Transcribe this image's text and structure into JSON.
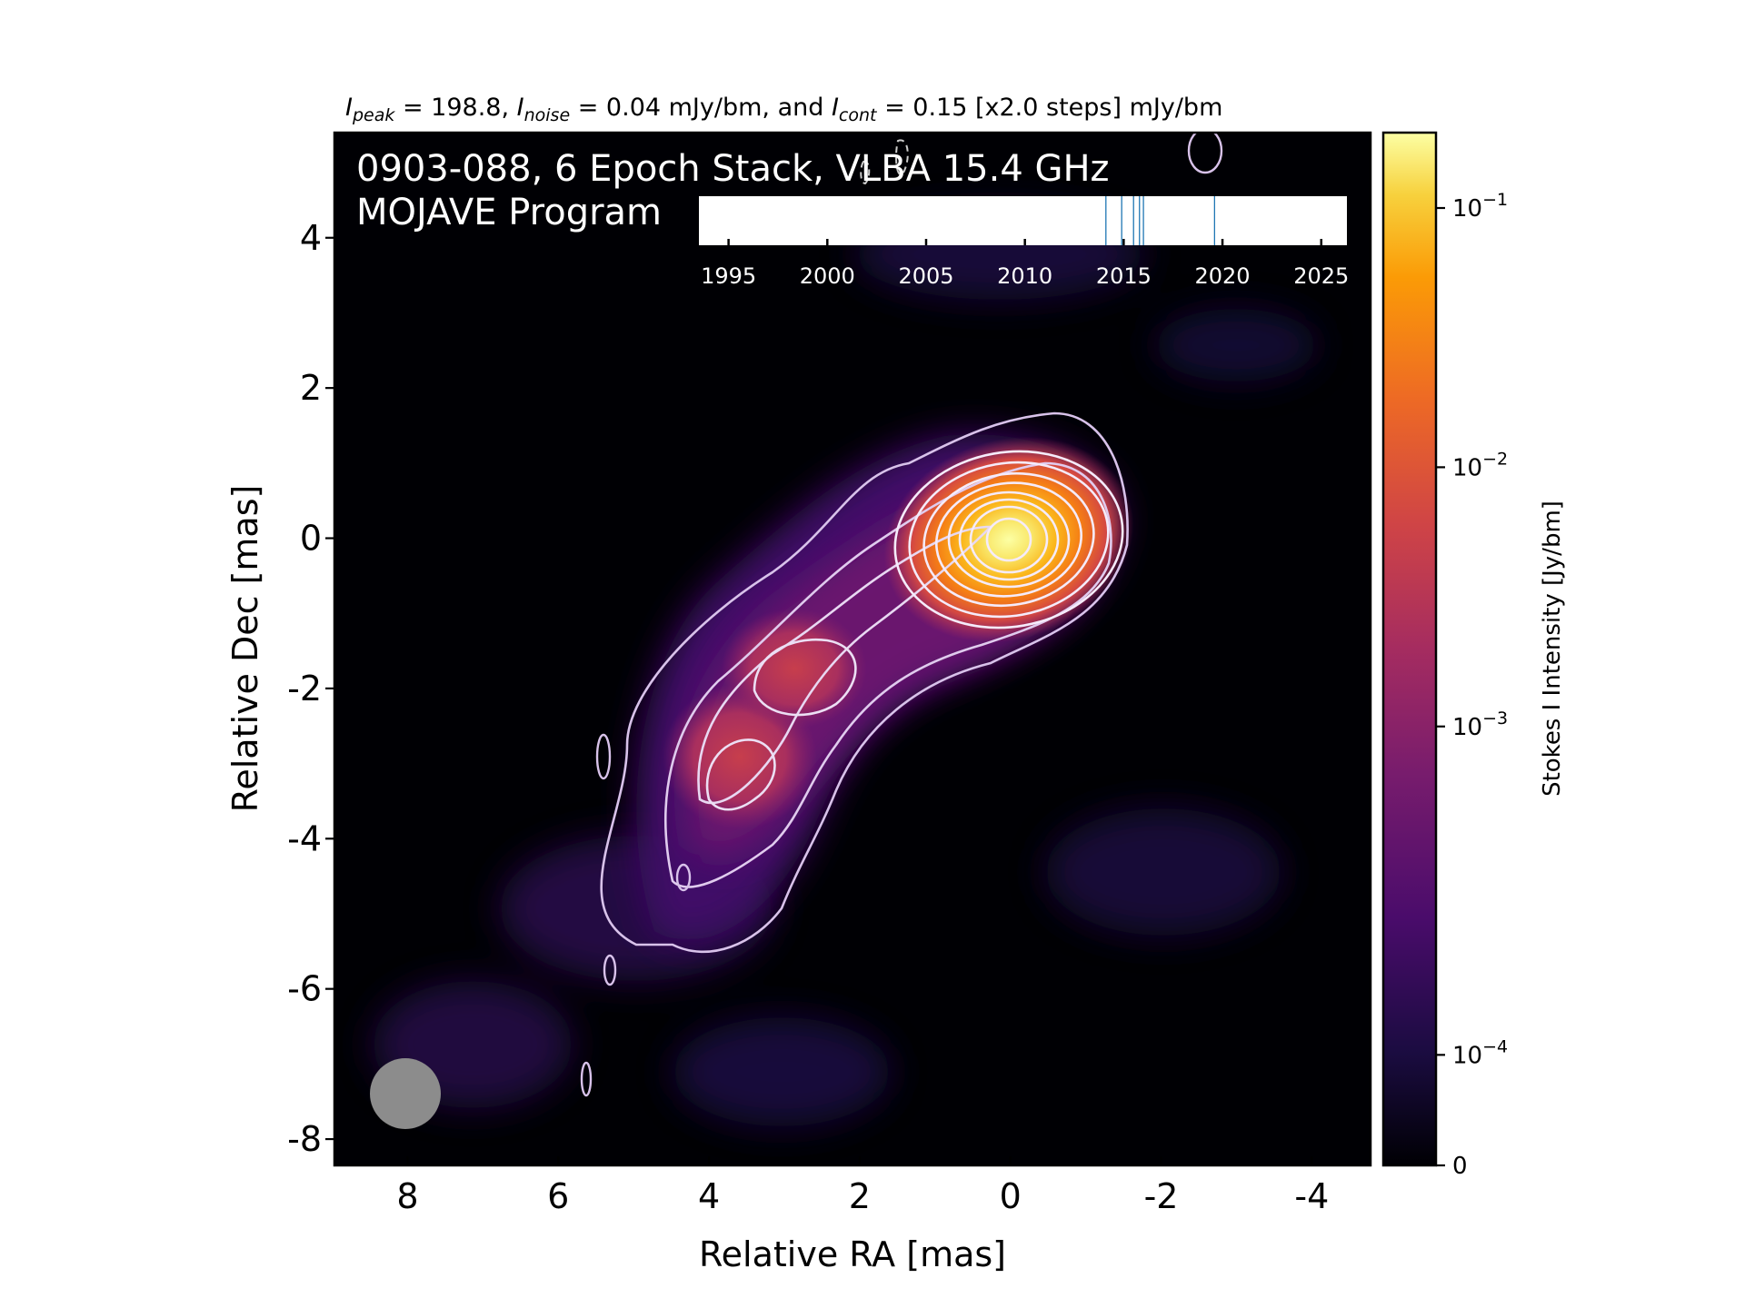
{
  "chart_data": {
    "type": "heatmap",
    "title": {
      "peak_sym": "I",
      "peak_sub": "peak",
      "peak_text": " = 198.8, ",
      "noise_sym": "I",
      "noise_sub": "noise",
      "noise_text": " = 0.04 mJy/bm, and ",
      "cont_sym": "I",
      "cont_sub": "cont",
      "cont_text": " = 0.15 [x2.0 steps] mJy/bm"
    },
    "annotation": {
      "line1": "0903-088, 6 Epoch Stack, VLBA 15.4 GHz",
      "line2": "MOJAVE Program"
    },
    "xlabel": "Relative RA [mas]",
    "ylabel": "Relative Dec [mas]",
    "xlim": [
      8.97,
      -4.78
    ],
    "ylim": [
      -8.35,
      5.4
    ],
    "x_ticks": [
      {
        "value": 8,
        "label": "8"
      },
      {
        "value": 6,
        "label": "6"
      },
      {
        "value": 4,
        "label": "4"
      },
      {
        "value": 2,
        "label": "2"
      },
      {
        "value": 0,
        "label": "0"
      },
      {
        "value": -2,
        "label": "-2"
      },
      {
        "value": -4,
        "label": "-4"
      }
    ],
    "y_ticks": [
      {
        "value": 4,
        "label": "4"
      },
      {
        "value": 2,
        "label": "2"
      },
      {
        "value": 0,
        "label": "0"
      },
      {
        "value": -2,
        "label": "-2"
      },
      {
        "value": -4,
        "label": "-4"
      },
      {
        "value": -6,
        "label": "-6"
      },
      {
        "value": -8,
        "label": "-8"
      }
    ],
    "colormap": "inferno",
    "colorbar": {
      "label": "Stokes I Intensity [Jy/bm]",
      "scale": "log",
      "ticks": [
        {
          "frac": 0.0,
          "label": "0",
          "exp": ""
        },
        {
          "frac": 0.107,
          "label": "10",
          "exp": "−4"
        },
        {
          "frac": 0.425,
          "label": "10",
          "exp": "−3"
        },
        {
          "frac": 0.676,
          "label": "10",
          "exp": "−2"
        },
        {
          "frac": 0.927,
          "label": "10",
          "exp": "−1"
        }
      ]
    },
    "components": [
      {
        "x": 0.0,
        "y": 0.0,
        "peak_mjy": 198.8
      },
      {
        "x": 2.8,
        "y": -1.8,
        "peak_mjy": 3.5
      },
      {
        "x": 3.6,
        "y": -3.0,
        "peak_mjy": 1.8
      }
    ],
    "beam": {
      "x": 8.0,
      "y": -7.4,
      "major_mas": 0.9,
      "minor_mas": 0.9
    },
    "epoch_timeline": {
      "range": [
        1993.5,
        2026.3
      ],
      "ticks": [
        {
          "value": 1995,
          "label": "1995"
        },
        {
          "value": 2000,
          "label": "2000"
        },
        {
          "value": 2005,
          "label": "2005"
        },
        {
          "value": 2010,
          "label": "2010"
        },
        {
          "value": 2015,
          "label": "2015"
        },
        {
          "value": 2020,
          "label": "2020"
        },
        {
          "value": 2025,
          "label": "2025"
        }
      ],
      "epochs": [
        2014.1,
        2014.9,
        2015.5,
        2015.8,
        2016.0,
        2019.6
      ]
    }
  }
}
